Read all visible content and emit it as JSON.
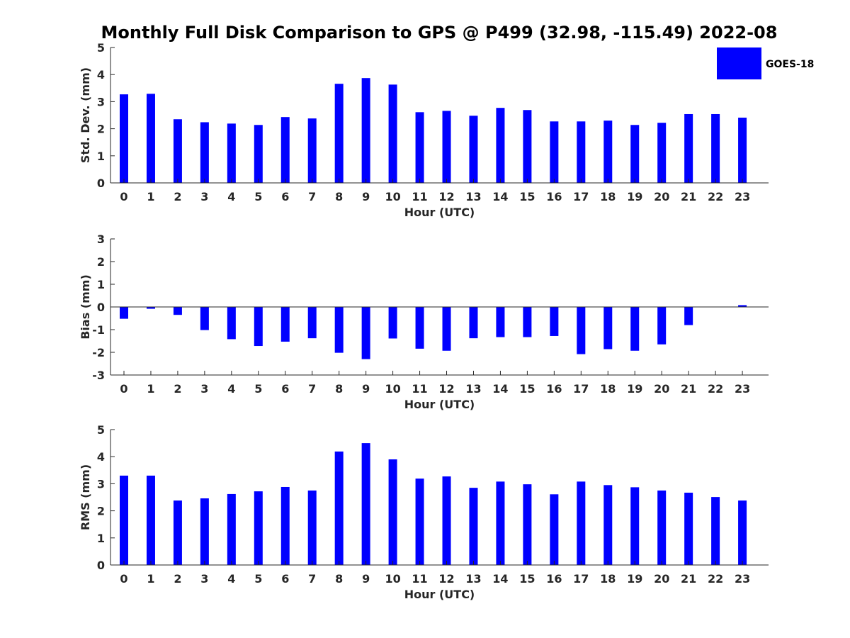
{
  "title": "Monthly Full Disk Comparison to GPS @ P499 (32.98, -115.49) 2022-08",
  "legend": {
    "label": "GOES-18",
    "color": "#0000ff",
    "placement": "top-right"
  },
  "chart_data": [
    {
      "type": "bar",
      "name": "std",
      "categories": [
        "0",
        "1",
        "2",
        "3",
        "4",
        "5",
        "6",
        "7",
        "8",
        "9",
        "10",
        "11",
        "12",
        "13",
        "14",
        "15",
        "16",
        "17",
        "18",
        "19",
        "20",
        "21",
        "22",
        "23"
      ],
      "series": [
        {
          "name": "GOES-18",
          "values": [
            3.27,
            3.29,
            2.35,
            2.24,
            2.19,
            2.14,
            2.43,
            2.38,
            3.66,
            3.87,
            3.63,
            2.61,
            2.66,
            2.48,
            2.77,
            2.69,
            2.27,
            2.27,
            2.3,
            2.14,
            2.22,
            2.54,
            2.54,
            2.41
          ]
        }
      ],
      "xlabel": "Hour (UTC)",
      "ylabel": "Std. Dev. (mm)",
      "ylim": [
        0,
        5
      ],
      "yticks": [
        "0",
        "1",
        "2",
        "3",
        "4",
        "5"
      ],
      "grid": false
    },
    {
      "type": "bar",
      "name": "bias",
      "categories": [
        "0",
        "1",
        "2",
        "3",
        "4",
        "5",
        "6",
        "7",
        "8",
        "9",
        "10",
        "11",
        "12",
        "13",
        "14",
        "15",
        "16",
        "17",
        "18",
        "19",
        "20",
        "21",
        "22",
        "23"
      ],
      "series": [
        {
          "name": "GOES-18",
          "values": [
            -0.52,
            -0.08,
            -0.35,
            -1.02,
            -1.42,
            -1.72,
            -1.53,
            -1.38,
            -2.02,
            -2.3,
            -1.39,
            -1.84,
            -1.93,
            -1.38,
            -1.33,
            -1.33,
            -1.28,
            -2.08,
            -1.86,
            -1.93,
            -1.65,
            -0.8,
            0.0,
            0.08
          ]
        }
      ],
      "xlabel": "Hour (UTC)",
      "ylabel": "Bias (mm)",
      "ylim": [
        -3,
        3
      ],
      "yticks": [
        "-3",
        "-2",
        "-1",
        "0",
        "1",
        "2",
        "3"
      ],
      "grid": false
    },
    {
      "type": "bar",
      "name": "rms",
      "categories": [
        "0",
        "1",
        "2",
        "3",
        "4",
        "5",
        "6",
        "7",
        "8",
        "9",
        "10",
        "11",
        "12",
        "13",
        "14",
        "15",
        "16",
        "17",
        "18",
        "19",
        "20",
        "21",
        "22",
        "23"
      ],
      "series": [
        {
          "name": "GOES-18",
          "values": [
            3.3,
            3.3,
            2.38,
            2.46,
            2.62,
            2.72,
            2.88,
            2.75,
            4.19,
            4.5,
            3.9,
            3.19,
            3.27,
            2.85,
            3.08,
            2.98,
            2.61,
            3.08,
            2.95,
            2.87,
            2.75,
            2.67,
            2.51,
            2.38
          ]
        }
      ],
      "xlabel": "Hour (UTC)",
      "ylabel": "RMS (mm)",
      "ylim": [
        0,
        5
      ],
      "yticks": [
        "0",
        "1",
        "2",
        "3",
        "4",
        "5"
      ],
      "grid": false
    }
  ]
}
